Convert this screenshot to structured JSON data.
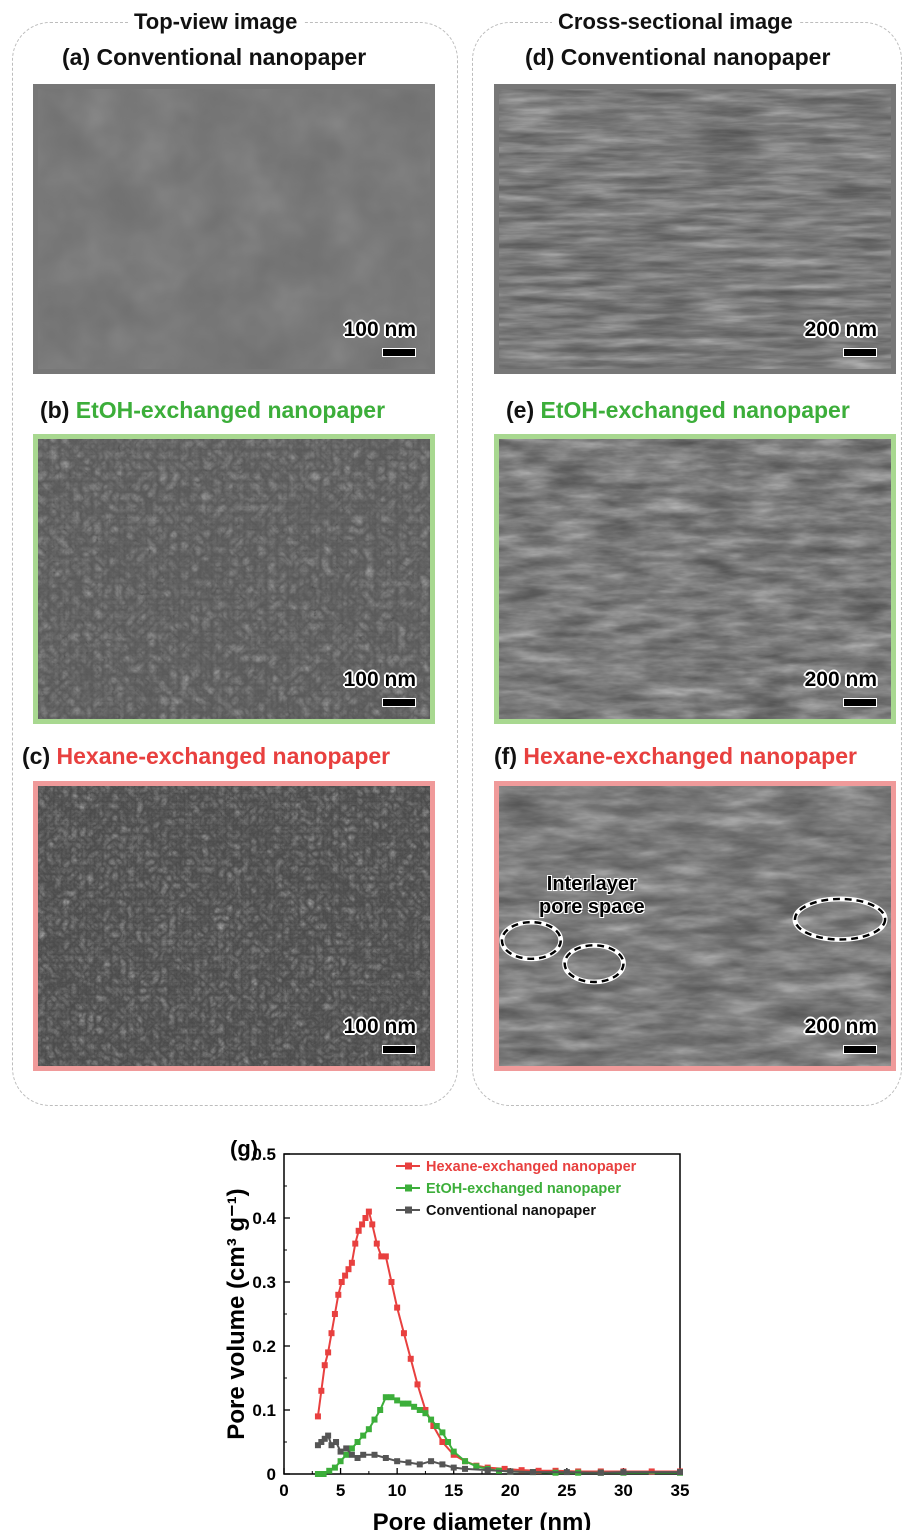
{
  "left_group": {
    "title": "Top-view image"
  },
  "right_group": {
    "title": "Cross-sectional image"
  },
  "panels": {
    "a": {
      "letter": "(a)",
      "label": "Conventional nanopaper",
      "scale": "100 nm"
    },
    "b": {
      "letter": "(b)",
      "label": "EtOH-exchanged nanopaper",
      "scale": "100 nm"
    },
    "c": {
      "letter": "(c)",
      "label": "Hexane-exchanged nanopaper",
      "scale": "100 nm"
    },
    "d": {
      "letter": "(d)",
      "label": "Conventional nanopaper",
      "scale": "200 nm"
    },
    "e": {
      "letter": "(e)",
      "label": "EtOH-exchanged nanopaper",
      "scale": "200 nm"
    },
    "f": {
      "letter": "(f)",
      "label": "Hexane-exchanged nanopaper",
      "scale": "200 nm",
      "annotation_line1": "Interlayer",
      "annotation_line2": "pore space"
    }
  },
  "colors": {
    "conventional": "#555555",
    "etoh": "#3cae3a",
    "hexane": "#e8403f"
  },
  "chart_data": {
    "type": "line",
    "panel_letter": "(g)",
    "xlabel": "Pore diameter (nm)",
    "ylabel": "Pore volume (cm³ g⁻¹)",
    "xlim": [
      0,
      35
    ],
    "ylim": [
      0,
      0.5
    ],
    "xticks": [
      0,
      5,
      10,
      15,
      20,
      25,
      30,
      35
    ],
    "yticks": [
      0,
      0.1,
      0.2,
      0.3,
      0.4,
      0.5
    ],
    "legend_position": "top-right",
    "series": [
      {
        "name": "Hexane-exchanged nanopaper",
        "color": "#e8403f",
        "x": [
          3.0,
          3.3,
          3.6,
          3.9,
          4.2,
          4.5,
          4.8,
          5.1,
          5.4,
          5.7,
          6.0,
          6.3,
          6.6,
          6.9,
          7.2,
          7.5,
          7.8,
          8.2,
          8.6,
          9.0,
          9.5,
          10.0,
          10.6,
          11.2,
          11.8,
          12.5,
          13.2,
          14.0,
          15.0,
          16.0,
          17.0,
          18.0,
          19.5,
          21.0,
          22.5,
          24.0,
          26.0,
          28.0,
          30.0,
          32.5,
          35.0
        ],
        "y": [
          0.09,
          0.13,
          0.17,
          0.19,
          0.22,
          0.25,
          0.28,
          0.3,
          0.31,
          0.32,
          0.33,
          0.36,
          0.38,
          0.39,
          0.4,
          0.41,
          0.39,
          0.36,
          0.34,
          0.34,
          0.3,
          0.26,
          0.22,
          0.18,
          0.14,
          0.1,
          0.075,
          0.05,
          0.03,
          0.02,
          0.013,
          0.01,
          0.008,
          0.006,
          0.005,
          0.005,
          0.004,
          0.004,
          0.004,
          0.004,
          0.004
        ]
      },
      {
        "name": "EtOH-exchanged nanopaper",
        "color": "#3cae3a",
        "x": [
          3.0,
          3.5,
          4.0,
          4.5,
          5.0,
          5.5,
          6.0,
          6.5,
          7.0,
          7.5,
          8.0,
          8.5,
          9.0,
          9.5,
          10.0,
          10.5,
          11.0,
          11.5,
          12.0,
          12.5,
          13.0,
          13.5,
          14.0,
          14.5,
          15.0,
          16.0,
          17.0,
          18.0,
          19.0,
          20.0,
          22.0,
          24.0,
          26.0,
          28.0,
          30.0,
          35.0
        ],
        "y": [
          0.0,
          0.0,
          0.005,
          0.01,
          0.02,
          0.03,
          0.04,
          0.05,
          0.06,
          0.07,
          0.085,
          0.1,
          0.12,
          0.12,
          0.115,
          0.11,
          0.11,
          0.105,
          0.1,
          0.095,
          0.085,
          0.075,
          0.065,
          0.05,
          0.035,
          0.02,
          0.012,
          0.008,
          0.005,
          0.004,
          0.003,
          0.002,
          0.002,
          0.002,
          0.002,
          0.002
        ]
      },
      {
        "name": "Conventional nanopaper",
        "color": "#555555",
        "x": [
          3.0,
          3.3,
          3.6,
          3.9,
          4.2,
          4.6,
          5.0,
          5.5,
          6.0,
          6.5,
          7.0,
          8.0,
          9.0,
          10.0,
          11.0,
          12.0,
          13.0,
          14.0,
          15.0,
          16.0,
          18.0,
          20.0,
          22.0,
          25.0,
          28.0,
          30.0,
          35.0
        ],
        "y": [
          0.045,
          0.05,
          0.055,
          0.06,
          0.045,
          0.05,
          0.035,
          0.04,
          0.03,
          0.025,
          0.03,
          0.03,
          0.025,
          0.02,
          0.018,
          0.015,
          0.02,
          0.015,
          0.01,
          0.008,
          0.006,
          0.004,
          0.003,
          0.003,
          0.002,
          0.003,
          0.003
        ]
      }
    ]
  }
}
